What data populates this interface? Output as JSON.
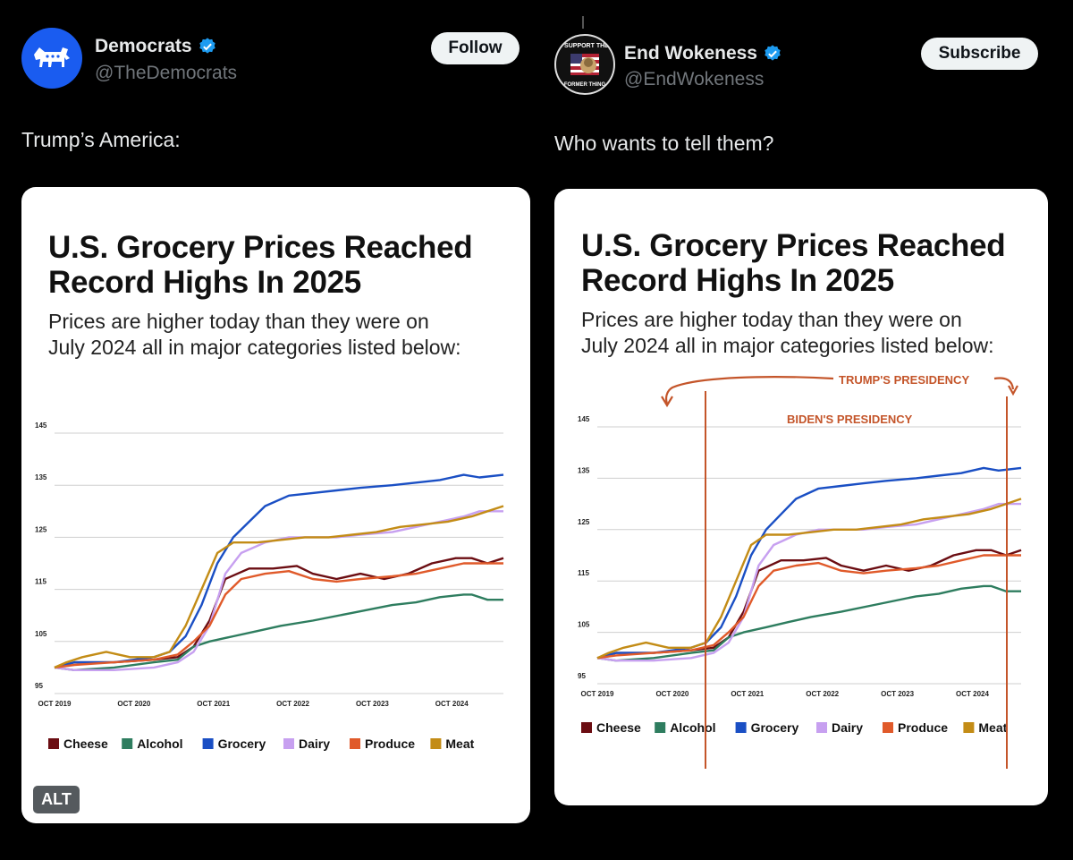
{
  "colors": {
    "cheese": "#6b0d12",
    "alcohol": "#2e7d5f",
    "grocery": "#1a4fc4",
    "dairy": "#c7a0f0",
    "produce": "#e05a2a",
    "meat": "#c38c16",
    "annotation": "#c4552a",
    "verified": "#1d9bf0"
  },
  "left_post": {
    "name": "Democrats",
    "handle": "@TheDemocrats",
    "button": "Follow",
    "text": "Trump’s America:",
    "alt_badge": "ALT",
    "avatar_icon": "donkey-icon"
  },
  "right_post": {
    "name": "End Wokeness",
    "handle": "@EndWokeness",
    "button": "Subscribe",
    "text": "Who wants to tell them?",
    "avatar_text_top": "I SUPPORT THE",
    "avatar_text_bottom": "FORMER THING",
    "annotation_trump": "TRUMP'S PRESIDENCY",
    "annotation_biden": "BIDEN'S PRESIDENCY"
  },
  "chart_data": [
    {
      "type": "line",
      "title": "U.S. Grocery Prices Reached Record Highs In 2025",
      "subtitle_line1": "Prices are higher today than they were on",
      "subtitle_line2": "July 2024 all in major categories listed below:",
      "x_ticks": [
        "OCT 2019",
        "OCT 2020",
        "OCT 2021",
        "OCT 2022",
        "OCT 2023",
        "OCT 2024"
      ],
      "y_ticks": [
        145,
        135,
        125,
        115,
        105,
        95
      ],
      "ylim": [
        95,
        145
      ],
      "xlim": [
        2019.75,
        2025.4
      ],
      "grid": true,
      "legend": "bottom",
      "series": [
        {
          "name": "Cheese",
          "color_key": "cheese",
          "x": [
            2019.75,
            2020.0,
            2020.5,
            2021.0,
            2021.3,
            2021.5,
            2021.7,
            2021.9,
            2022.2,
            2022.5,
            2022.8,
            2023.0,
            2023.3,
            2023.6,
            2023.9,
            2024.2,
            2024.5,
            2024.8,
            2025.0,
            2025.2,
            2025.4
          ],
          "y": [
            100,
            101,
            101,
            101.5,
            102,
            104,
            109,
            117,
            119,
            119,
            119.5,
            118,
            117,
            118,
            117,
            118,
            120,
            121,
            121,
            120,
            121
          ]
        },
        {
          "name": "Alcohol",
          "color_key": "alcohol",
          "x": [
            2019.75,
            2020.0,
            2020.5,
            2021.0,
            2021.3,
            2021.5,
            2021.7,
            2022.0,
            2022.3,
            2022.6,
            2023.0,
            2023.5,
            2024.0,
            2024.3,
            2024.6,
            2024.9,
            2025.0,
            2025.2,
            2025.4
          ],
          "y": [
            100,
            99.5,
            100,
            101,
            101.5,
            104,
            105,
            106,
            107,
            108,
            109,
            110.5,
            112,
            112.5,
            113.5,
            114,
            114,
            113,
            113
          ]
        },
        {
          "name": "Grocery",
          "color_key": "grocery",
          "x": [
            2019.75,
            2020.0,
            2020.5,
            2021.0,
            2021.2,
            2021.4,
            2021.6,
            2021.8,
            2022.0,
            2022.2,
            2022.4,
            2022.7,
            2023.0,
            2023.3,
            2023.6,
            2024.0,
            2024.3,
            2024.6,
            2024.9,
            2025.1,
            2025.4
          ],
          "y": [
            100,
            101,
            101,
            102,
            103,
            106,
            112,
            120,
            125,
            128,
            131,
            133,
            133.5,
            134,
            134.5,
            135,
            135.5,
            136,
            137,
            136.5,
            137
          ]
        },
        {
          "name": "Dairy",
          "color_key": "dairy",
          "x": [
            2019.75,
            2020.0,
            2020.5,
            2021.0,
            2021.3,
            2021.5,
            2021.7,
            2021.9,
            2022.1,
            2022.4,
            2022.7,
            2023.0,
            2023.3,
            2023.6,
            2024.0,
            2024.3,
            2024.6,
            2024.9,
            2025.1,
            2025.4
          ],
          "y": [
            100,
            99.5,
            99.5,
            100,
            101,
            103,
            108,
            118,
            122,
            124,
            125,
            125,
            125,
            125.5,
            126,
            127,
            128,
            129,
            130,
            130
          ]
        },
        {
          "name": "Produce",
          "color_key": "produce",
          "x": [
            2019.75,
            2020.0,
            2020.5,
            2021.0,
            2021.3,
            2021.5,
            2021.7,
            2021.9,
            2022.1,
            2022.4,
            2022.7,
            2023.0,
            2023.3,
            2023.6,
            2024.0,
            2024.3,
            2024.6,
            2024.9,
            2025.1,
            2025.4
          ],
          "y": [
            100,
            100.5,
            101,
            101.5,
            102.5,
            105,
            108,
            114,
            117,
            118,
            118.5,
            117,
            116.5,
            117,
            117.5,
            118,
            119,
            120,
            120,
            120
          ]
        },
        {
          "name": "Meat",
          "color_key": "meat",
          "x": [
            2019.75,
            2019.9,
            2020.1,
            2020.4,
            2020.7,
            2021.0,
            2021.2,
            2021.4,
            2021.6,
            2021.8,
            2022.0,
            2022.3,
            2022.6,
            2022.9,
            2023.2,
            2023.5,
            2023.8,
            2024.1,
            2024.4,
            2024.7,
            2025.0,
            2025.2,
            2025.4
          ],
          "y": [
            100,
            101,
            102,
            103,
            102,
            102,
            103,
            108,
            115,
            122,
            124,
            124,
            124.5,
            125,
            125,
            125.5,
            126,
            127,
            127.5,
            128,
            129,
            130,
            131
          ]
        }
      ]
    }
  ]
}
